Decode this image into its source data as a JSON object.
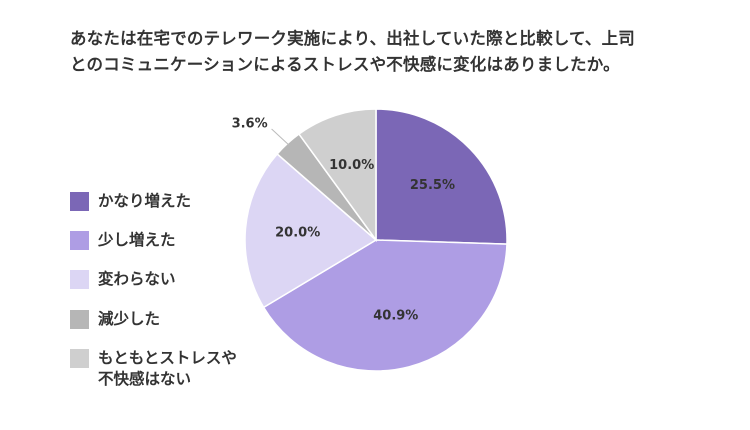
{
  "title_lines": [
    "あなたは在宅でのテレワーク実施により、出社していた際と比較して、上司",
    "とのコミュニケーションによるストレスや不快感に変化はありましたか。"
  ],
  "chart_data": {
    "type": "pie",
    "title": "あなたは在宅でのテレワーク実施により、出社していた際と比較して、上司とのコミュニケーションによるストレスや不快感に変化はありましたか。",
    "legend_position": "left",
    "start_angle_deg": 0,
    "direction": "clockwise",
    "slices": [
      {
        "label": "かなり増えた",
        "label_lines": [
          "かなり増えた"
        ],
        "value": 25.5,
        "display": "25.5%",
        "color": "#7b67b6"
      },
      {
        "label": "少し増えた",
        "label_lines": [
          "少し増えた"
        ],
        "value": 40.9,
        "display": "40.9%",
        "color": "#ae9de4"
      },
      {
        "label": "変わらない",
        "label_lines": [
          "変わらない"
        ],
        "value": 20.0,
        "display": "20.0%",
        "color": "#dcd6f4"
      },
      {
        "label": "減少した",
        "label_lines": [
          "減少した"
        ],
        "value": 3.6,
        "display": "3.6%",
        "color": "#b6b6b6",
        "label_outside": true
      },
      {
        "label": "もともとストレスや不快感はない",
        "label_lines": [
          "もともとストレスや",
          "不快感はない"
        ],
        "value": 10.0,
        "display": "10.0%",
        "color": "#cfcfcf"
      }
    ]
  }
}
